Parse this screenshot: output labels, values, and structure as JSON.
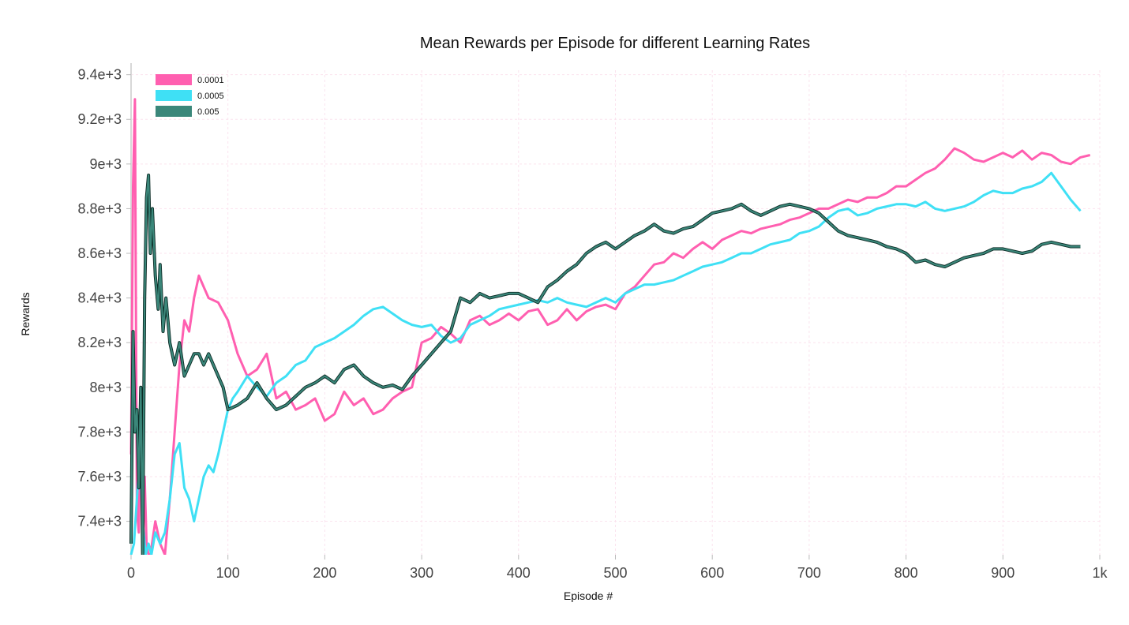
{
  "chart_data": {
    "type": "line",
    "title": "Mean Rewards per Episode for different Learning Rates",
    "xlabel": "Episode #",
    "ylabel": "Rewards",
    "xlim": [
      0,
      1000
    ],
    "ylim": [
      7250,
      9420
    ],
    "x_ticks": [
      0,
      100,
      200,
      300,
      400,
      500,
      600,
      700,
      800,
      900,
      1000
    ],
    "x_tick_labels": [
      "0",
      "100",
      "200",
      "300",
      "400",
      "500",
      "600",
      "700",
      "800",
      "900",
      "1k"
    ],
    "y_ticks": [
      7400,
      7600,
      7800,
      8000,
      8200,
      8400,
      8600,
      8800,
      9000,
      9200,
      9400
    ],
    "y_tick_labels": [
      "7.4e+3",
      "7.6e+3",
      "7.8e+3",
      "8e+3",
      "8.2e+3",
      "8.4e+3",
      "8.6e+3",
      "8.8e+3",
      "9e+3",
      "9.2e+3",
      "9.4e+3"
    ],
    "grid": true,
    "legend_position": "top-left",
    "series": [
      {
        "name": "0.0001",
        "color": "#ff5fb0",
        "x": [
          0,
          2,
          4,
          6,
          8,
          10,
          12,
          14,
          16,
          18,
          20,
          25,
          30,
          35,
          40,
          45,
          50,
          55,
          60,
          65,
          70,
          75,
          80,
          90,
          100,
          110,
          120,
          130,
          140,
          150,
          160,
          170,
          180,
          190,
          200,
          210,
          220,
          230,
          240,
          250,
          260,
          270,
          280,
          290,
          300,
          310,
          320,
          330,
          340,
          350,
          360,
          370,
          380,
          390,
          400,
          410,
          420,
          430,
          440,
          450,
          460,
          470,
          480,
          490,
          500,
          510,
          520,
          530,
          540,
          550,
          560,
          570,
          580,
          590,
          600,
          610,
          620,
          630,
          640,
          650,
          660,
          670,
          680,
          690,
          700,
          710,
          720,
          730,
          740,
          750,
          760,
          770,
          780,
          790,
          800,
          810,
          820,
          830,
          840,
          850,
          860,
          870,
          880,
          890,
          900,
          910,
          920,
          930,
          940,
          950,
          960,
          970,
          980,
          990
        ],
        "y": [
          7700,
          8900,
          9290,
          7450,
          7350,
          8000,
          7250,
          7600,
          7300,
          7250,
          7250,
          7400,
          7300,
          7250,
          7500,
          7800,
          8100,
          8300,
          8250,
          8400,
          8500,
          8450,
          8400,
          8380,
          8300,
          8150,
          8050,
          8080,
          8150,
          7950,
          7980,
          7900,
          7920,
          7950,
          7850,
          7880,
          7980,
          7920,
          7950,
          7880,
          7900,
          7950,
          7980,
          8000,
          8200,
          8220,
          8270,
          8240,
          8200,
          8300,
          8320,
          8280,
          8300,
          8330,
          8300,
          8340,
          8350,
          8280,
          8300,
          8350,
          8300,
          8340,
          8360,
          8370,
          8350,
          8420,
          8450,
          8500,
          8550,
          8560,
          8600,
          8580,
          8620,
          8650,
          8620,
          8660,
          8680,
          8700,
          8690,
          8710,
          8720,
          8730,
          8750,
          8760,
          8780,
          8800,
          8800,
          8820,
          8840,
          8830,
          8850,
          8850,
          8870,
          8900,
          8900,
          8930,
          8960,
          8980,
          9020,
          9070,
          9050,
          9020,
          9010,
          9030,
          9050,
          9030,
          9060,
          9020,
          9050,
          9040,
          9010,
          9000,
          9030,
          9040
        ]
      },
      {
        "name": "0.0005",
        "color": "#3fe0f5",
        "x": [
          0,
          3,
          6,
          9,
          12,
          15,
          18,
          21,
          25,
          30,
          35,
          40,
          45,
          50,
          55,
          60,
          65,
          70,
          75,
          80,
          85,
          90,
          95,
          100,
          105,
          110,
          120,
          130,
          140,
          150,
          160,
          170,
          180,
          190,
          200,
          210,
          220,
          230,
          240,
          250,
          260,
          270,
          280,
          290,
          300,
          310,
          320,
          330,
          340,
          350,
          360,
          370,
          380,
          390,
          400,
          410,
          420,
          430,
          440,
          450,
          460,
          470,
          480,
          490,
          500,
          510,
          520,
          530,
          540,
          550,
          560,
          570,
          580,
          590,
          600,
          610,
          620,
          630,
          640,
          650,
          660,
          670,
          680,
          690,
          700,
          710,
          720,
          730,
          740,
          750,
          760,
          770,
          780,
          790,
          800,
          810,
          820,
          830,
          840,
          850,
          860,
          870,
          880,
          890,
          900,
          910,
          920,
          930,
          940,
          950,
          960,
          970,
          980
        ],
        "y": [
          7250,
          7300,
          7500,
          7700,
          7400,
          7250,
          7300,
          7250,
          7350,
          7300,
          7350,
          7500,
          7700,
          7750,
          7550,
          7500,
          7400,
          7500,
          7600,
          7650,
          7620,
          7700,
          7800,
          7900,
          7950,
          7980,
          8050,
          8000,
          7960,
          8020,
          8050,
          8100,
          8120,
          8180,
          8200,
          8220,
          8250,
          8280,
          8320,
          8350,
          8360,
          8330,
          8300,
          8280,
          8270,
          8280,
          8230,
          8200,
          8220,
          8280,
          8300,
          8320,
          8350,
          8360,
          8370,
          8380,
          8390,
          8380,
          8400,
          8380,
          8370,
          8360,
          8380,
          8400,
          8380,
          8420,
          8440,
          8460,
          8460,
          8470,
          8480,
          8500,
          8520,
          8540,
          8550,
          8560,
          8580,
          8600,
          8600,
          8620,
          8640,
          8650,
          8660,
          8690,
          8700,
          8720,
          8760,
          8790,
          8800,
          8770,
          8780,
          8800,
          8810,
          8820,
          8820,
          8810,
          8830,
          8800,
          8790,
          8800,
          8810,
          8830,
          8860,
          8880,
          8870,
          8870,
          8890,
          8900,
          8920,
          8960,
          8900,
          8840,
          8790
        ]
      },
      {
        "name": "0.005",
        "color": "#3b877a",
        "x": [
          0,
          2,
          4,
          6,
          8,
          10,
          12,
          14,
          16,
          18,
          20,
          22,
          25,
          28,
          30,
          33,
          36,
          40,
          45,
          50,
          55,
          60,
          65,
          70,
          75,
          80,
          85,
          90,
          95,
          100,
          110,
          120,
          130,
          140,
          150,
          160,
          170,
          180,
          190,
          200,
          210,
          220,
          230,
          240,
          250,
          260,
          270,
          280,
          290,
          300,
          310,
          320,
          330,
          340,
          350,
          360,
          370,
          380,
          390,
          400,
          410,
          420,
          430,
          440,
          450,
          460,
          470,
          480,
          490,
          500,
          510,
          520,
          530,
          540,
          550,
          560,
          570,
          580,
          590,
          600,
          610,
          620,
          630,
          640,
          650,
          660,
          670,
          680,
          690,
          700,
          710,
          720,
          730,
          740,
          750,
          760,
          770,
          780,
          790,
          800,
          810,
          820,
          830,
          840,
          850,
          860,
          870,
          880,
          890,
          900,
          910,
          920,
          930,
          940,
          950,
          960,
          970,
          980
        ],
        "y": [
          7300,
          8250,
          7800,
          7900,
          7550,
          8000,
          7250,
          8400,
          8850,
          8950,
          8600,
          8800,
          8500,
          8350,
          8550,
          8250,
          8400,
          8200,
          8100,
          8200,
          8050,
          8100,
          8150,
          8150,
          8100,
          8150,
          8100,
          8050,
          8000,
          7900,
          7920,
          7950,
          8020,
          7950,
          7900,
          7920,
          7960,
          8000,
          8020,
          8050,
          8020,
          8080,
          8100,
          8050,
          8020,
          8000,
          8010,
          7990,
          8050,
          8100,
          8150,
          8200,
          8250,
          8400,
          8380,
          8420,
          8400,
          8410,
          8420,
          8420,
          8400,
          8380,
          8450,
          8480,
          8520,
          8550,
          8600,
          8630,
          8650,
          8620,
          8650,
          8680,
          8700,
          8730,
          8700,
          8690,
          8710,
          8720,
          8750,
          8780,
          8790,
          8800,
          8820,
          8790,
          8770,
          8790,
          8810,
          8820,
          8810,
          8800,
          8780,
          8740,
          8700,
          8680,
          8670,
          8660,
          8650,
          8630,
          8620,
          8600,
          8560,
          8570,
          8550,
          8540,
          8560,
          8580,
          8590,
          8600,
          8620,
          8620,
          8610,
          8600,
          8610,
          8640,
          8650,
          8640,
          8630,
          8630
        ]
      }
    ]
  }
}
